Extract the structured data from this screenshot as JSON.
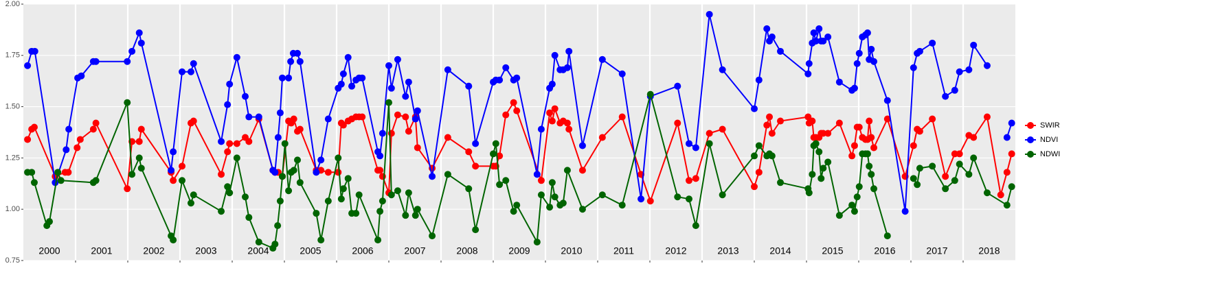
{
  "chart_data": {
    "type": "line",
    "xlim": [
      2000,
      2019
    ],
    "xticks": [
      2001,
      2002,
      2003,
      2004,
      2005,
      2006,
      2007,
      2008,
      2009,
      2010,
      2011,
      2012,
      2013,
      2014,
      2015,
      2016,
      2017,
      2018
    ],
    "ylim": [
      0.75,
      2.0
    ],
    "yticks": [
      {
        "value": 0.75,
        "label": "0.75"
      },
      {
        "value": 1,
        "label": "1.00"
      },
      {
        "value": 1.25,
        "label": "1.25"
      },
      {
        "value": 1.5,
        "label": "1.50"
      },
      {
        "value": 1.75,
        "label": "1.75"
      },
      {
        "value": 2,
        "label": "2.00"
      }
    ],
    "grid": true,
    "legend": "right",
    "annotations": [
      {
        "x": 2000.5,
        "text": "2000"
      },
      {
        "x": 2001.5,
        "text": "2001"
      },
      {
        "x": 2002.5,
        "text": "2002"
      },
      {
        "x": 2003.5,
        "text": "2003"
      },
      {
        "x": 2004.5,
        "text": "2004"
      },
      {
        "x": 2005.5,
        "text": "2005"
      },
      {
        "x": 2006.5,
        "text": "2006"
      },
      {
        "x": 2007.5,
        "text": "2007"
      },
      {
        "x": 2008.5,
        "text": "2008"
      },
      {
        "x": 2009.5,
        "text": "2009"
      },
      {
        "x": 2010.5,
        "text": "2010"
      },
      {
        "x": 2011.5,
        "text": "2011"
      },
      {
        "x": 2012.5,
        "text": "2012"
      },
      {
        "x": 2013.5,
        "text": "2013"
      },
      {
        "x": 2014.5,
        "text": "2014"
      },
      {
        "x": 2015.5,
        "text": "2015"
      },
      {
        "x": 2016.5,
        "text": "2016"
      },
      {
        "x": 2017.5,
        "text": "2017"
      },
      {
        "x": 2018.5,
        "text": "2018"
      }
    ],
    "series": [
      {
        "name": "SWIR",
        "color": "#ff0000",
        "x": [
          2000.08,
          2000.16,
          2000.21,
          2000.61,
          2000.8,
          2000.86,
          2001.03,
          2001.09,
          2001.34,
          2001.39,
          2001.99,
          2002.08,
          2002.22,
          2002.26,
          2002.83,
          2002.87,
          2003.04,
          2003.21,
          2003.26,
          2003.79,
          2003.91,
          2003.95,
          2004.09,
          2004.25,
          2004.32,
          2004.51,
          2004.78,
          2004.82,
          2004.88,
          2004.96,
          2005.08,
          2005.13,
          2005.18,
          2005.25,
          2005.3,
          2005.61,
          2005.7,
          2005.84,
          2006.03,
          2006.09,
          2006.13,
          2006.22,
          2006.29,
          2006.37,
          2006.43,
          2006.49,
          2006.79,
          2006.83,
          2006.88,
          2007.0,
          2007.05,
          2007.17,
          2007.32,
          2007.38,
          2007.51,
          2007.55,
          2007.83,
          2008.13,
          2008.53,
          2008.66,
          2009.0,
          2009.05,
          2009.12,
          2009.24,
          2009.39,
          2009.45,
          2009.92,
          2010.08,
          2010.13,
          2010.18,
          2010.28,
          2010.34,
          2010.42,
          2010.45,
          2010.71,
          2011.09,
          2011.47,
          2011.83,
          2012.01,
          2012.53,
          2012.75,
          2012.88,
          2013.14,
          2013.39,
          2014.0,
          2014.09,
          2014.24,
          2014.29,
          2014.34,
          2014.5,
          2015.03,
          2015.05,
          2015.11,
          2015.14,
          2015.18,
          2015.24,
          2015.28,
          2015.32,
          2015.41,
          2015.63,
          2015.87,
          2015.92,
          2015.97,
          2016.01,
          2016.07,
          2016.13,
          2016.17,
          2016.2,
          2016.24,
          2016.29,
          2016.55,
          2016.89,
          2017.05,
          2017.12,
          2017.17,
          2017.41,
          2017.66,
          2017.84,
          2017.93,
          2018.11,
          2018.2,
          2018.46,
          2018.72,
          2018.84,
          2018.93
        ],
        "values": [
          1.34,
          1.39,
          1.4,
          1.16,
          1.18,
          1.18,
          1.3,
          1.34,
          1.39,
          1.42,
          1.1,
          1.33,
          1.33,
          1.39,
          1.18,
          1.14,
          1.21,
          1.42,
          1.43,
          1.17,
          1.28,
          1.32,
          1.32,
          1.35,
          1.33,
          1.44,
          1.19,
          1.18,
          1.18,
          1.16,
          1.43,
          1.42,
          1.44,
          1.38,
          1.39,
          1.19,
          1.19,
          1.18,
          1.18,
          1.42,
          1.41,
          1.43,
          1.44,
          1.45,
          1.45,
          1.45,
          1.19,
          1.19,
          1.16,
          1.08,
          1.37,
          1.46,
          1.45,
          1.38,
          1.45,
          1.3,
          1.2,
          1.35,
          1.28,
          1.21,
          1.21,
          1.21,
          1.26,
          1.46,
          1.52,
          1.48,
          1.14,
          1.47,
          1.43,
          1.49,
          1.42,
          1.43,
          1.42,
          1.39,
          1.19,
          1.35,
          1.45,
          1.17,
          1.04,
          1.42,
          1.14,
          1.15,
          1.37,
          1.39,
          1.11,
          1.18,
          1.41,
          1.45,
          1.37,
          1.43,
          1.45,
          1.42,
          1.43,
          1.35,
          1.35,
          1.35,
          1.37,
          1.37,
          1.37,
          1.42,
          1.26,
          1.31,
          1.4,
          1.4,
          1.35,
          1.34,
          1.34,
          1.43,
          1.35,
          1.3,
          1.44,
          1.16,
          1.31,
          1.39,
          1.38,
          1.44,
          1.16,
          1.27,
          1.27,
          1.36,
          1.35,
          1.45,
          1.07,
          1.18,
          1.27
        ]
      },
      {
        "name": "NDVI",
        "color": "#0000ff",
        "x": [
          2000.08,
          2000.16,
          2000.22,
          2000.61,
          2000.82,
          2000.87,
          2001.04,
          2001.11,
          2001.34,
          2001.39,
          2001.99,
          2002.08,
          2002.22,
          2002.26,
          2002.83,
          2002.87,
          2003.04,
          2003.21,
          2003.26,
          2003.79,
          2003.91,
          2003.95,
          2004.09,
          2004.25,
          2004.32,
          2004.51,
          2004.78,
          2004.82,
          2004.88,
          2004.92,
          2004.96,
          2005.08,
          2005.12,
          2005.17,
          2005.25,
          2005.3,
          2005.61,
          2005.7,
          2005.84,
          2006.03,
          2006.09,
          2006.13,
          2006.22,
          2006.29,
          2006.37,
          2006.43,
          2006.49,
          2006.79,
          2006.83,
          2006.88,
          2007.0,
          2007.05,
          2007.17,
          2007.32,
          2007.38,
          2007.51,
          2007.55,
          2007.83,
          2008.13,
          2008.53,
          2008.66,
          2009.0,
          2009.05,
          2009.12,
          2009.24,
          2009.39,
          2009.45,
          2009.84,
          2009.92,
          2010.08,
          2010.13,
          2010.18,
          2010.28,
          2010.34,
          2010.42,
          2010.45,
          2010.71,
          2011.09,
          2011.47,
          2011.83,
          2012.01,
          2012.53,
          2012.75,
          2012.88,
          2013.14,
          2013.39,
          2014.0,
          2014.09,
          2014.24,
          2014.29,
          2014.34,
          2014.5,
          2015.03,
          2015.05,
          2015.11,
          2015.14,
          2015.18,
          2015.24,
          2015.28,
          2015.32,
          2015.41,
          2015.63,
          2015.87,
          2015.92,
          2015.97,
          2016.01,
          2016.07,
          2016.13,
          2016.17,
          2016.2,
          2016.24,
          2016.29,
          2016.55,
          2016.89,
          2017.05,
          2017.12,
          2017.17,
          2017.41,
          2017.66,
          2017.84,
          2017.93,
          2018.11,
          2018.2,
          2018.46,
          2018.72,
          2018.84,
          2018.93
        ],
        "values": [
          1.7,
          1.77,
          1.77,
          1.13,
          1.29,
          1.39,
          1.64,
          1.65,
          1.72,
          1.72,
          1.72,
          1.77,
          1.86,
          1.81,
          1.19,
          1.28,
          1.67,
          1.67,
          1.71,
          1.33,
          1.51,
          1.61,
          1.74,
          1.55,
          1.45,
          1.45,
          1.19,
          1.18,
          1.35,
          1.47,
          1.64,
          1.64,
          1.72,
          1.76,
          1.76,
          1.72,
          1.18,
          1.24,
          1.44,
          1.59,
          1.61,
          1.66,
          1.74,
          1.6,
          1.63,
          1.64,
          1.64,
          1.28,
          1.26,
          1.37,
          1.7,
          1.59,
          1.73,
          1.55,
          1.62,
          1.44,
          1.48,
          1.16,
          1.68,
          1.6,
          1.32,
          1.62,
          1.63,
          1.63,
          1.69,
          1.63,
          1.64,
          1.17,
          1.39,
          1.59,
          1.61,
          1.75,
          1.68,
          1.68,
          1.69,
          1.77,
          1.31,
          1.73,
          1.66,
          1.05,
          1.55,
          1.6,
          1.32,
          1.3,
          1.95,
          1.68,
          1.49,
          1.63,
          1.88,
          1.82,
          1.84,
          1.77,
          1.66,
          1.71,
          1.81,
          1.86,
          1.82,
          1.88,
          1.82,
          1.82,
          1.84,
          1.62,
          1.58,
          1.59,
          1.71,
          1.76,
          1.84,
          1.85,
          1.86,
          1.73,
          1.78,
          1.72,
          1.53,
          0.99,
          1.69,
          1.76,
          1.77,
          1.81,
          1.55,
          1.58,
          1.67,
          1.68,
          1.8,
          1.7,
          null,
          1.35,
          1.42
        ]
      },
      {
        "name": "NDWI",
        "color": "#006400",
        "x": [
          2000.08,
          2000.16,
          2000.21,
          2000.45,
          2000.5,
          2000.66,
          2000.72,
          2001.34,
          2001.39,
          2001.99,
          2002.08,
          2002.22,
          2002.26,
          2002.83,
          2002.87,
          2003.04,
          2003.21,
          2003.26,
          2003.79,
          2003.91,
          2003.95,
          2004.09,
          2004.25,
          2004.32,
          2004.51,
          2004.78,
          2004.82,
          2004.87,
          2004.92,
          2004.96,
          2005.01,
          2005.08,
          2005.13,
          2005.18,
          2005.25,
          2005.3,
          2005.61,
          2005.7,
          2005.84,
          2006.03,
          2006.09,
          2006.13,
          2006.22,
          2006.29,
          2006.37,
          2006.43,
          2006.79,
          2006.83,
          2006.88,
          2007.0,
          2007.05,
          2007.17,
          2007.32,
          2007.38,
          2007.51,
          2007.55,
          2007.83,
          2008.13,
          2008.53,
          2008.66,
          2009.0,
          2009.05,
          2009.12,
          2009.24,
          2009.39,
          2009.45,
          2009.84,
          2009.92,
          2010.08,
          2010.13,
          2010.18,
          2010.28,
          2010.34,
          2010.42,
          2010.71,
          2011.09,
          2011.47,
          2012.01,
          2012.53,
          2012.75,
          2012.88,
          2013.14,
          2013.39,
          2014.0,
          2014.09,
          2014.24,
          2014.29,
          2014.34,
          2014.5,
          2015.03,
          2015.05,
          2015.11,
          2015.14,
          2015.18,
          2015.24,
          2015.28,
          2015.32,
          2015.41,
          2015.63,
          2015.87,
          2015.92,
          2015.97,
          2016.01,
          2016.07,
          2016.13,
          2016.17,
          2016.2,
          2016.24,
          2016.29,
          2016.55,
          2016.89,
          2017.05,
          2017.12,
          2017.17,
          2017.41,
          2017.66,
          2017.84,
          2017.93,
          2018.11,
          2018.2,
          2018.46,
          2018.84,
          2018.93
        ],
        "values": [
          1.18,
          1.18,
          1.13,
          0.92,
          0.94,
          1.18,
          1.14,
          1.13,
          1.14,
          1.52,
          1.17,
          1.25,
          1.2,
          0.87,
          0.85,
          1.14,
          1.03,
          1.07,
          0.99,
          1.11,
          1.08,
          1.25,
          1.06,
          0.96,
          0.84,
          0.81,
          0.83,
          0.92,
          1.04,
          1.16,
          1.32,
          1.09,
          1.18,
          1.19,
          1.24,
          1.13,
          0.98,
          0.85,
          1.04,
          1.25,
          1.05,
          1.1,
          1.15,
          0.98,
          0.98,
          1.07,
          0.85,
          0.99,
          1.04,
          1.52,
          1.07,
          1.09,
          0.97,
          1.08,
          0.97,
          1.0,
          0.87,
          1.17,
          1.1,
          0.9,
          1.27,
          1.32,
          1.12,
          1.14,
          0.99,
          1.02,
          0.84,
          1.07,
          1.01,
          1.13,
          1.06,
          1.02,
          1.03,
          1.19,
          1.0,
          1.07,
          1.02,
          1.56,
          1.06,
          1.05,
          0.92,
          1.32,
          1.07,
          1.26,
          1.31,
          1.26,
          1.27,
          1.26,
          1.13,
          1.1,
          1.08,
          1.17,
          1.31,
          1.32,
          1.28,
          1.15,
          1.2,
          1.23,
          0.97,
          1.02,
          0.99,
          1.06,
          1.11,
          1.27,
          1.27,
          1.27,
          1.21,
          1.17,
          1.1,
          0.87,
          null,
          1.15,
          1.12,
          1.2,
          1.21,
          1.1,
          1.14,
          1.22,
          1.17,
          1.25,
          1.08,
          1.02,
          1.11
        ]
      }
    ]
  }
}
